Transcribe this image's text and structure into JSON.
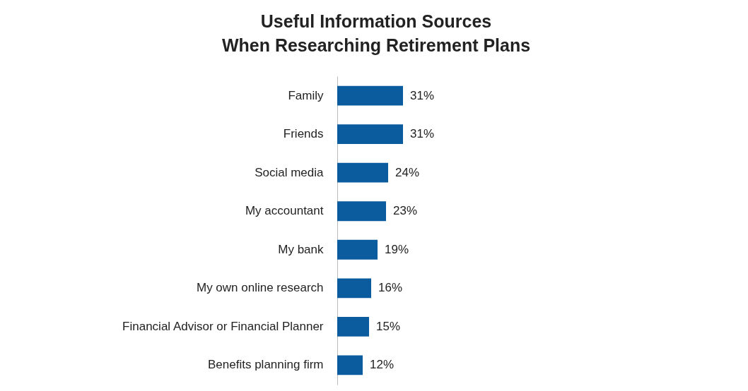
{
  "chart_data": {
    "type": "bar",
    "orientation": "horizontal",
    "title": "Useful Information Sources\nWhen Researching Retirement Plans",
    "categories": [
      "Family",
      "Friends",
      "Social media",
      "My accountant",
      "My bank",
      "My own online research",
      "Financial Advisor or Financial Planner",
      "Benefits planning firm"
    ],
    "values": [
      31,
      31,
      24,
      23,
      19,
      16,
      15,
      12
    ],
    "value_labels": [
      "31%",
      "31%",
      "24%",
      "23%",
      "19%",
      "16%",
      "15%",
      "12%"
    ],
    "color": "#0b5c9e"
  }
}
